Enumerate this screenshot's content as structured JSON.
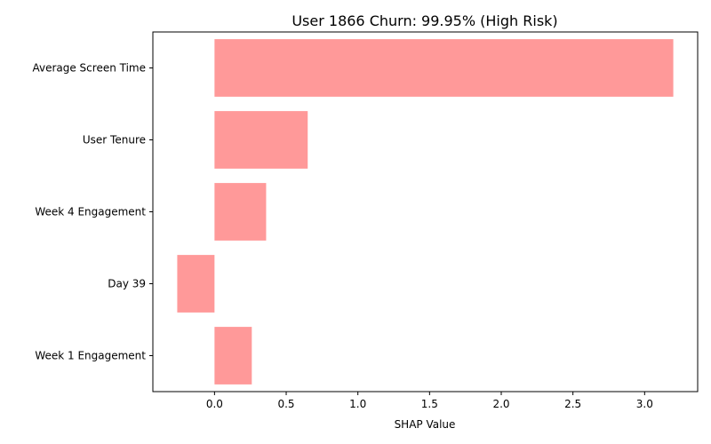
{
  "chart_data": {
    "type": "bar",
    "orientation": "horizontal",
    "title": "User 1866 Churn: 99.95% (High Risk)",
    "xlabel": "SHAP Value",
    "ylabel": "",
    "categories": [
      "Average Screen Time",
      "User Tenure",
      "Week 4 Engagement",
      "Day 39",
      "Week 1 Engagement"
    ],
    "values": [
      3.2,
      0.65,
      0.36,
      -0.26,
      0.26
    ],
    "xlim": [
      -0.43,
      3.37
    ],
    "xticks": [
      "0.0",
      "0.5",
      "1.0",
      "1.5",
      "2.0",
      "2.5",
      "3.0"
    ],
    "grid": false,
    "legend": "none",
    "bar_color": "#ff9999"
  }
}
